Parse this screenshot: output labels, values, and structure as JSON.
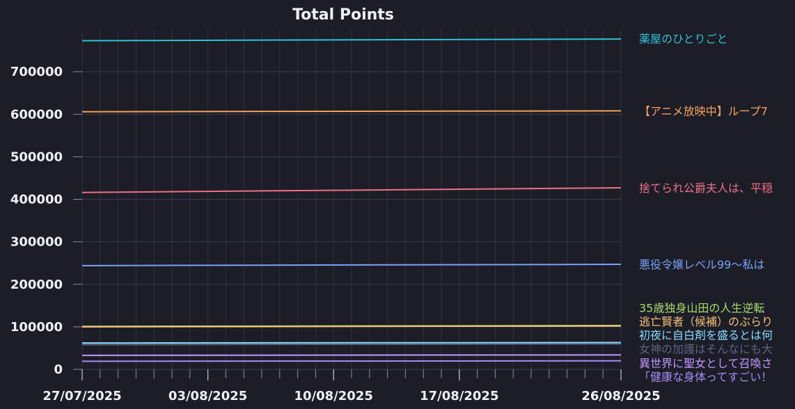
{
  "chart_data": {
    "type": "line",
    "title": "Total Points",
    "xlabel": "",
    "ylabel": "",
    "x_start": "27/07/2025",
    "x_end": "26/08/2025",
    "x_ticks": [
      "27/07/2025",
      "03/08/2025",
      "10/08/2025",
      "17/08/2025",
      "26/08/2025"
    ],
    "ylim": [
      0,
      800000
    ],
    "y_ticks": [
      0,
      100000,
      200000,
      300000,
      400000,
      500000,
      600000,
      700000
    ],
    "grid": true,
    "legend": "right-side labels",
    "series": [
      {
        "name": "薬屋のひとりごと",
        "color": "#2ec4d4",
        "start": 773000,
        "end": 777000,
        "label_y": 778000
      },
      {
        "name": "【アニメ放映中】ループ7",
        "color": "#f4a259",
        "start": 606000,
        "end": 608000,
        "label_y": 608000
      },
      {
        "name": "捨てられ公爵夫人は、平穏",
        "color": "#f07084",
        "start": 416000,
        "end": 427000,
        "label_y": 427000
      },
      {
        "name": "悪役令嬢レベル99〜私は",
        "color": "#7aa2f7",
        "start": 244000,
        "end": 247000,
        "label_y": 247000
      },
      {
        "name": "35歳独身山田の人生逆転",
        "color": "#a6d96a",
        "start": 101000,
        "end": 103000,
        "label_y": 145000
      },
      {
        "name": "逃亡賢者（候補）のぶらり",
        "color": "#f6c177",
        "start": 100000,
        "end": 102000,
        "label_y": 113000
      },
      {
        "name": "初夜に自白剤を盛るとは何",
        "color": "#89ddff",
        "start": 62000,
        "end": 63000,
        "label_y": 81000
      },
      {
        "name": "女神の加護はそんなにも大",
        "color": "#5c6380",
        "start": 58000,
        "end": 60000,
        "label_y": 48000
      },
      {
        "name": "異世界に聖女として召喚さ",
        "color": "#c099ff",
        "start": 33000,
        "end": 34000,
        "label_y": 15000
      },
      {
        "name": "「健康な身体ってすごい！",
        "color": "#a78bfa",
        "start": 19000,
        "end": 20000,
        "label_y": -17000
      }
    ]
  }
}
